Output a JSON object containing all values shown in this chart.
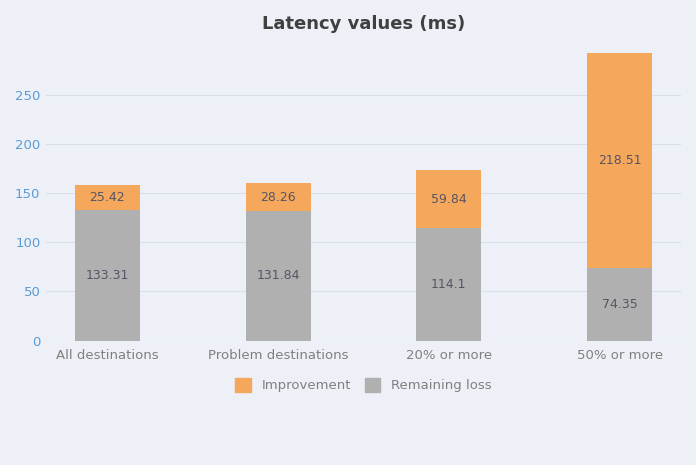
{
  "title": "Latency values (ms)",
  "categories": [
    "All destinations",
    "Problem destinations",
    "20% or more",
    "50% or more"
  ],
  "remaining_loss": [
    133.31,
    131.84,
    114.1,
    74.35
  ],
  "improvement": [
    25.42,
    28.26,
    59.84,
    218.51
  ],
  "remaining_loss_color": "#b0b0b0",
  "improvement_color": "#f5a85c",
  "figure_background_color": "#edf1f7",
  "plot_background_color": "#edf1f7",
  "bar_width": 0.38,
  "ylim": [
    0,
    300
  ],
  "yticks": [
    0,
    50,
    100,
    150,
    200,
    250
  ],
  "legend_labels": [
    "Improvement",
    "Remaining loss"
  ],
  "title_fontsize": 13,
  "tick_fontsize": 9.5,
  "label_fontsize": 9.5,
  "value_fontsize": 9,
  "grid_color": "#d8dfe8",
  "ytick_color": "#5b9bd5",
  "xtick_color": "#7f7f7f",
  "title_color": "#404040",
  "value_text_color": "#555566"
}
